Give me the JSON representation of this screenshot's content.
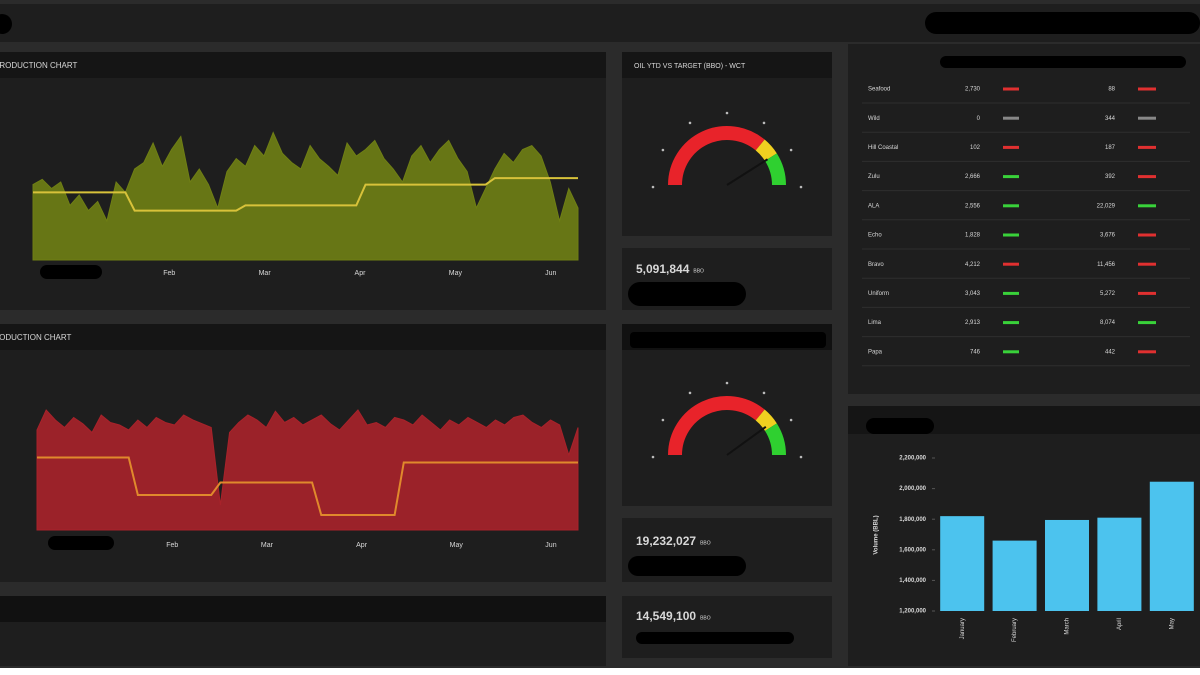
{
  "production_chart_top": {
    "title": "PRODUCTION CHART",
    "months": [
      "Feb",
      "Mar",
      "Apr",
      "May",
      "Jun"
    ],
    "ylim": [
      0,
      100
    ],
    "area": {
      "color": "#6f7f14",
      "values": [
        58,
        62,
        55,
        60,
        42,
        50,
        38,
        45,
        30,
        60,
        52,
        70,
        75,
        90,
        72,
        85,
        95,
        60,
        70,
        58,
        40,
        68,
        78,
        72,
        88,
        80,
        98,
        82,
        75,
        70,
        88,
        78,
        72,
        65,
        90,
        80,
        85,
        92,
        78,
        70,
        60,
        80,
        88,
        75,
        85,
        92,
        78,
        68,
        40,
        55,
        70,
        82,
        75,
        85,
        88,
        80,
        60,
        30,
        55,
        40
      ]
    },
    "target": {
      "color": "#d8c23a",
      "values": [
        52,
        52,
        52,
        52,
        52,
        52,
        52,
        52,
        52,
        52,
        52,
        38,
        38,
        38,
        38,
        38,
        38,
        38,
        38,
        38,
        38,
        38,
        38,
        42,
        42,
        42,
        42,
        42,
        42,
        42,
        42,
        42,
        42,
        42,
        42,
        42,
        58,
        58,
        58,
        58,
        58,
        58,
        58,
        58,
        58,
        58,
        58,
        58,
        58,
        58,
        63,
        63,
        63,
        63,
        63,
        63,
        63,
        63,
        63,
        63
      ]
    }
  },
  "production_chart_bottom": {
    "title": "PRODUCTION CHART",
    "months": [
      "Feb",
      "Mar",
      "Apr",
      "May",
      "Jun"
    ],
    "ylim": [
      0,
      100
    ],
    "area": {
      "color": "#a8222a",
      "values": [
        80,
        96,
        88,
        82,
        90,
        85,
        78,
        92,
        86,
        84,
        80,
        88,
        82,
        90,
        86,
        84,
        92,
        88,
        85,
        82,
        20,
        78,
        86,
        92,
        88,
        82,
        95,
        86,
        90,
        84,
        88,
        92,
        85,
        80,
        88,
        96,
        84,
        86,
        82,
        90,
        88,
        84,
        92,
        86,
        80,
        88,
        84,
        90,
        86,
        82,
        88,
        84,
        90,
        92,
        86,
        82,
        88,
        84,
        60,
        82
      ]
    },
    "target": {
      "color": "#e0892c",
      "values": [
        58,
        58,
        58,
        58,
        58,
        58,
        58,
        58,
        58,
        58,
        58,
        28,
        28,
        28,
        28,
        28,
        28,
        28,
        28,
        28,
        38,
        38,
        38,
        38,
        38,
        38,
        38,
        38,
        38,
        38,
        38,
        12,
        12,
        12,
        12,
        12,
        12,
        12,
        12,
        12,
        54,
        54,
        54,
        54,
        54,
        54,
        54,
        54,
        54,
        54,
        54,
        54,
        54,
        54,
        54,
        54,
        54,
        54,
        54,
        54
      ]
    }
  },
  "gauges": [
    {
      "title": "OIL YTD VS TARGET (BBO) - WCT",
      "value": 82,
      "max": 100
    },
    {
      "value": 80,
      "max": 100
    }
  ],
  "kpis": [
    {
      "value": "5,091,844",
      "unit": "BBO"
    },
    {
      "value": "19,232,027",
      "unit": "BBO"
    },
    {
      "value": "14,549,100",
      "unit": "BBO"
    }
  ],
  "table": {
    "rows": [
      {
        "name": "Seafood",
        "a": "2,730",
        "a_trend": "down",
        "b": "88",
        "b_trend": "down"
      },
      {
        "name": "Wild",
        "a": "0",
        "a_trend": "flat",
        "b": "344",
        "b_trend": "flat"
      },
      {
        "name": "Hill Coastal",
        "a": "102",
        "a_trend": "down",
        "b": "187",
        "b_trend": "down"
      },
      {
        "name": "Zulu",
        "a": "2,666",
        "a_trend": "up",
        "b": "392",
        "b_trend": "down"
      },
      {
        "name": "ALA",
        "a": "2,556",
        "a_trend": "up",
        "b": "22,029",
        "b_trend": "up"
      },
      {
        "name": "Echo",
        "a": "1,828",
        "a_trend": "up",
        "b": "3,676",
        "b_trend": "down"
      },
      {
        "name": "Bravo",
        "a": "4,212",
        "a_trend": "down",
        "b": "11,456",
        "b_trend": "down"
      },
      {
        "name": "Uniform",
        "a": "3,043",
        "a_trend": "up",
        "b": "5,272",
        "b_trend": "down"
      },
      {
        "name": "Lima",
        "a": "2,913",
        "a_trend": "up",
        "b": "8,074",
        "b_trend": "up"
      },
      {
        "name": "Papa",
        "a": "746",
        "a_trend": "up",
        "b": "442",
        "b_trend": "down"
      }
    ]
  },
  "bar_chart": {
    "type": "bar",
    "y_label": "Volume (BBL)",
    "categories": [
      "January",
      "February",
      "March",
      "April",
      "May"
    ],
    "values": [
      1820000,
      1660000,
      1795000,
      1810000,
      2045000
    ],
    "color": "#4cc3ee",
    "ylim": [
      1200000,
      2200000
    ],
    "yticks": [
      {
        "value": 1200000,
        "label": "1,200,000"
      },
      {
        "value": 1400000,
        "label": "1,400,000"
      },
      {
        "value": 1600000,
        "label": "1,600,000"
      },
      {
        "value": 1800000,
        "label": "1,800,000"
      },
      {
        "value": 2000000,
        "label": "2,000,000"
      },
      {
        "value": 2200000,
        "label": "2,200,000"
      }
    ]
  }
}
